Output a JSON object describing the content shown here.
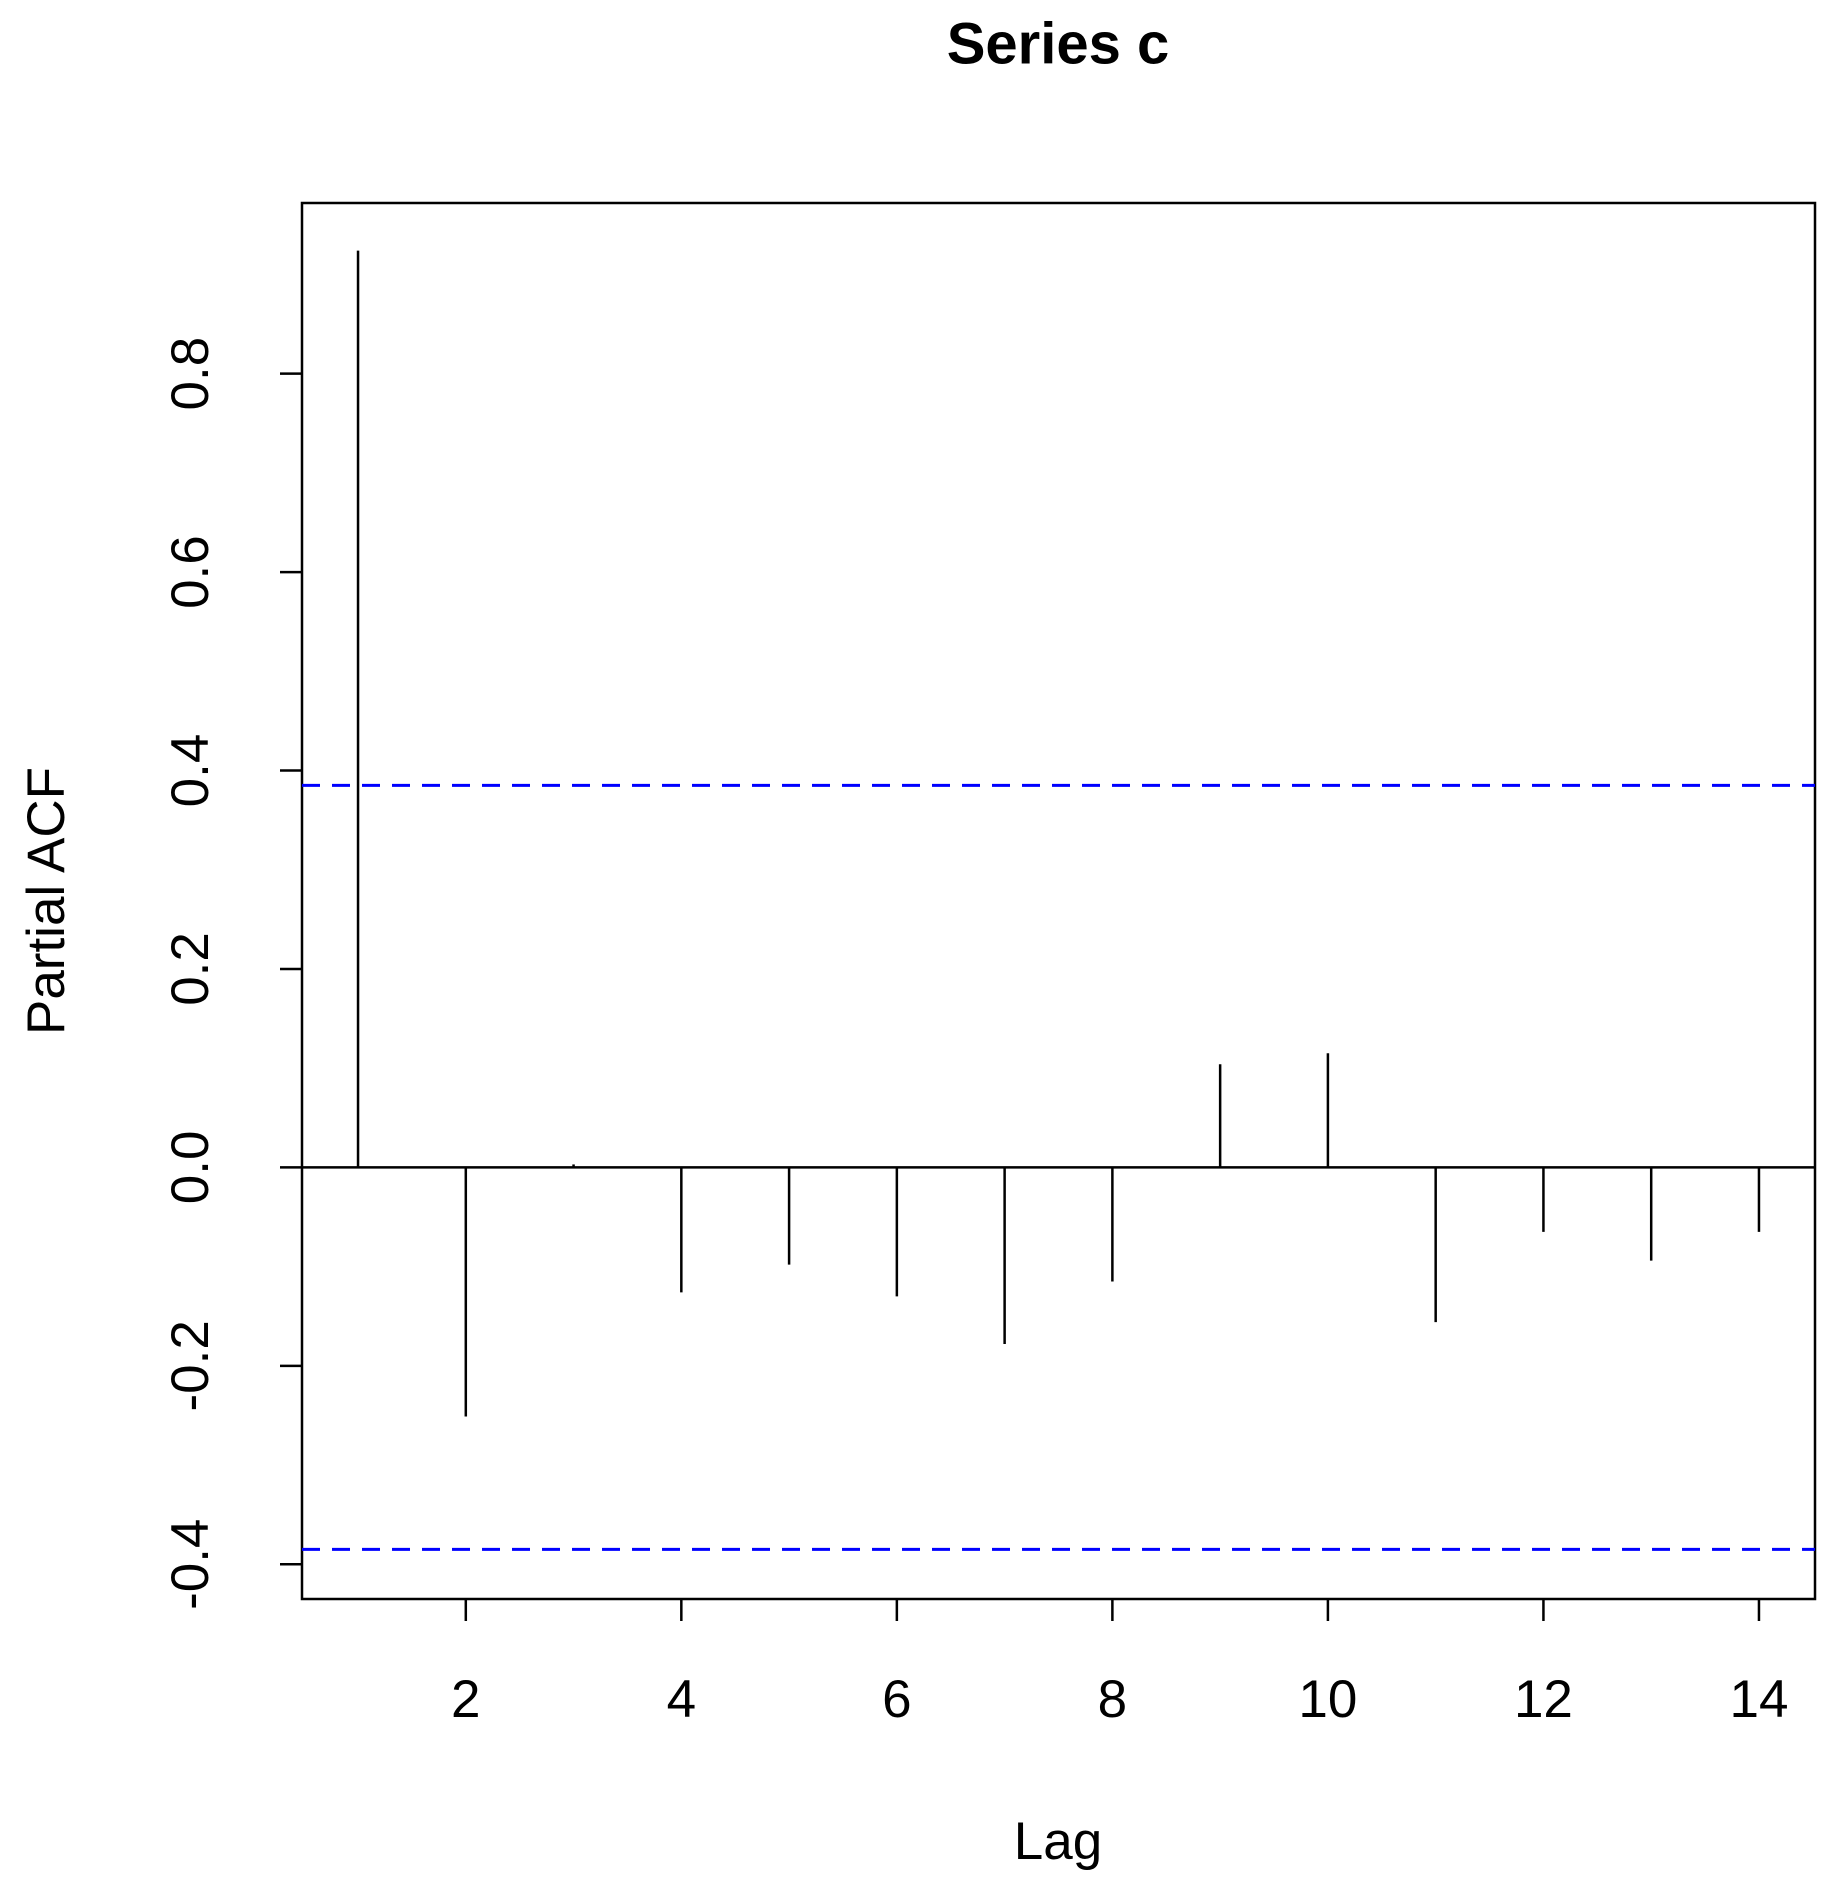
{
  "chart_data": {
    "type": "spike",
    "title": "Series  c",
    "x_label": "Lag",
    "y_label": "Partial ACF",
    "x": [
      1,
      2,
      3,
      4,
      5,
      6,
      7,
      8,
      9,
      10,
      11,
      12,
      13,
      14
    ],
    "values": [
      0.924,
      -0.251,
      0.003,
      -0.126,
      -0.098,
      -0.13,
      -0.178,
      -0.115,
      0.104,
      0.115,
      -0.156,
      -0.065,
      -0.094,
      -0.065
    ],
    "color": "#000000",
    "ci": [
      0.385,
      -0.385
    ],
    "ci_color": "#0000ff",
    "xlim": [
      0.48,
      14.52
    ],
    "xticks": [
      2,
      4,
      6,
      8,
      10,
      12,
      14
    ],
    "ylim": [
      -0.435,
      0.972
    ],
    "yticks": [
      -0.4,
      -0.2,
      {
        "value": 0,
        "label": "0.0"
      },
      0.2,
      0.4,
      0.6,
      0.8
    ]
  }
}
